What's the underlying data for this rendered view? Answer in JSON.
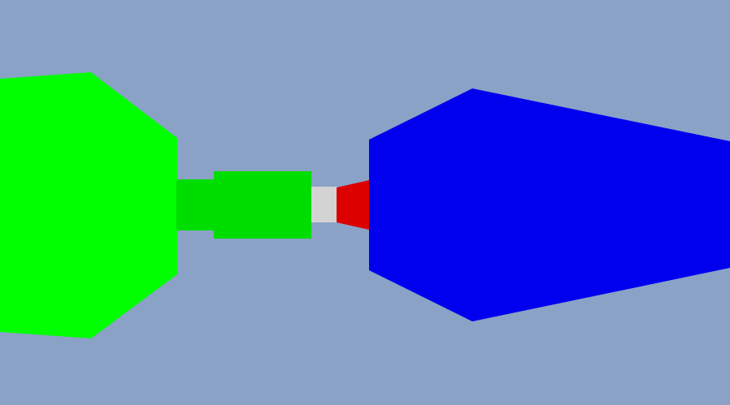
{
  "scene": {
    "background_color": "#8aa2c6",
    "objects": [
      {
        "name": "green-octagon-body",
        "color": "#00ff00"
      },
      {
        "name": "green-connector-dark",
        "color": "#00dd00"
      },
      {
        "name": "green-connector-block",
        "color": "#00dd00"
      },
      {
        "name": "gray-coupler",
        "color": "#d3d3d3"
      },
      {
        "name": "red-nozzle",
        "color": "#dd0000"
      },
      {
        "name": "blue-cone-body",
        "color": "#0000ee"
      }
    ]
  }
}
